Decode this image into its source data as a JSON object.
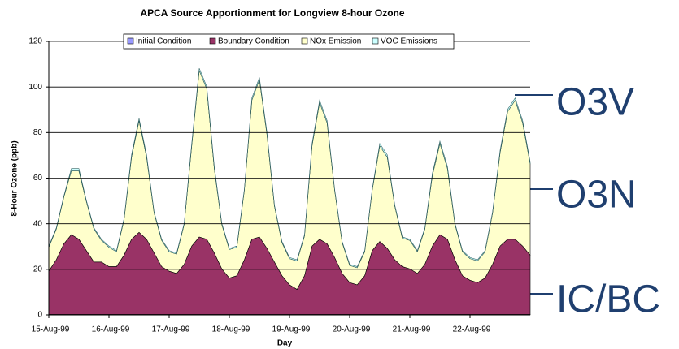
{
  "chart_data": {
    "type": "stacked_area",
    "title": "APCA Source Apportionment for Longview 8-hour Ozone",
    "x_label": "Day",
    "y_label": "8-Hour Ozone (ppb)",
    "categories": [
      "15-Aug-99",
      null,
      null,
      null,
      null,
      null,
      null,
      null,
      "16-Aug-99",
      null,
      null,
      null,
      null,
      null,
      null,
      null,
      "17-Aug-99",
      null,
      null,
      null,
      null,
      null,
      null,
      null,
      "18-Aug-99",
      null,
      null,
      null,
      null,
      null,
      null,
      null,
      "19-Aug-99",
      null,
      null,
      null,
      null,
      null,
      null,
      null,
      "20-Aug-99",
      null,
      null,
      null,
      null,
      null,
      null,
      null,
      "21-Aug-99",
      null,
      null,
      null,
      null,
      null,
      null,
      null,
      "22-Aug-99",
      null,
      null,
      null,
      null,
      null,
      null,
      null,
      null
    ],
    "series": [
      {
        "name": "Initial Condition",
        "color": "#9999ff",
        "values": [
          0.2,
          0.2,
          0.2,
          0.2,
          0.2,
          0.2,
          0.2,
          0.2,
          0.2,
          0.2,
          0.2,
          0.2,
          0.2,
          0.2,
          0.2,
          0.2,
          0.2,
          0.2,
          0.2,
          0.2,
          0.2,
          0.2,
          0.2,
          0.2,
          0.2,
          0.2,
          0.2,
          0.2,
          0.2,
          0.2,
          0.2,
          0.2,
          0.2,
          0.2,
          0.2,
          0.2,
          0.2,
          0.2,
          0.2,
          0.2,
          0.2,
          0.2,
          0.2,
          0.2,
          0.2,
          0.2,
          0.2,
          0.2,
          0.2,
          0.2,
          0.2,
          0.2,
          0.2,
          0.2,
          0.2,
          0.2,
          0.2,
          0.2,
          0.2,
          0.2,
          0.2,
          0.2,
          0.2,
          0.2,
          0.2
        ]
      },
      {
        "name": "Boundary Condition",
        "color": "#993366",
        "values": [
          19,
          24,
          31,
          35,
          33,
          28,
          23,
          23,
          21,
          21,
          26,
          33,
          36,
          33,
          27,
          21,
          19,
          18,
          22,
          30,
          34,
          33,
          27,
          20,
          16,
          17,
          24,
          33,
          34,
          29,
          23,
          17,
          13,
          11,
          17,
          30,
          33,
          31,
          25,
          18,
          14,
          13,
          17,
          28,
          32,
          29,
          24,
          21,
          20,
          18,
          22,
          30,
          35,
          33,
          24,
          17,
          15,
          14,
          16,
          22,
          30,
          33,
          33,
          30,
          26
        ]
      },
      {
        "name": "NOx Emission",
        "color": "#ffffcc",
        "values": [
          10.5,
          13.5,
          20.5,
          28,
          30,
          21.5,
          14.5,
          9.5,
          8.5,
          6.5,
          15.5,
          36,
          49,
          36,
          17.5,
          11.5,
          8.5,
          8.5,
          17.5,
          44,
          73,
          66,
          37,
          19.5,
          12.5,
          12.5,
          30.5,
          61,
          69,
          50,
          24.5,
          14.5,
          11.5,
          12.5,
          17.5,
          44,
          60,
          53,
          29.5,
          13.5,
          7.5,
          7.5,
          10.5,
          26.5,
          42,
          40,
          23.5,
          12.5,
          12.5,
          9.5,
          15.5,
          31,
          40,
          31,
          15.5,
          10.5,
          9.5,
          9.5,
          11.5,
          22.5,
          41,
          56,
          61,
          54,
          40
        ]
      },
      {
        "name": "VOC Emissions",
        "color": "#ccffff",
        "values": [
          0.5,
          0.5,
          0.5,
          1,
          1,
          0.5,
          0.5,
          0.5,
          0.5,
          0.5,
          0.5,
          1,
          1,
          1,
          0.5,
          0.5,
          0.5,
          0.5,
          0.5,
          1,
          1,
          1,
          1,
          0.5,
          0.5,
          0.5,
          0.5,
          1,
          1,
          1,
          0.5,
          0.5,
          0.5,
          0.5,
          0.5,
          1,
          1,
          1,
          0.5,
          0.5,
          0.5,
          0.5,
          0.5,
          0.5,
          1,
          1,
          0.5,
          0.5,
          0.5,
          0.5,
          0.5,
          1,
          1,
          1,
          0.5,
          0.5,
          0.5,
          0.5,
          0.5,
          0.5,
          1,
          1,
          1,
          1,
          1
        ]
      }
    ],
    "ylim": [
      0,
      120
    ],
    "yticks": [
      0,
      20,
      40,
      60,
      80,
      100,
      120
    ],
    "grid": true,
    "legend": "top",
    "annotations": [
      "O3V",
      "O3N",
      "IC/BC"
    ]
  }
}
